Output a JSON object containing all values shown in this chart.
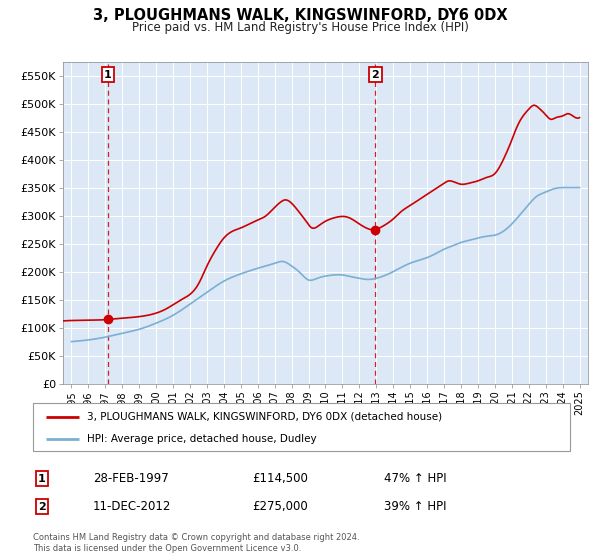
{
  "title": "3, PLOUGHMANS WALK, KINGSWINFORD, DY6 0DX",
  "subtitle": "Price paid vs. HM Land Registry's House Price Index (HPI)",
  "hpi_label": "HPI: Average price, detached house, Dudley",
  "property_label": "3, PLOUGHMANS WALK, KINGSWINFORD, DY6 0DX (detached house)",
  "sale1": {
    "date_label": "28-FEB-1997",
    "price": 114500,
    "pct": "47% ↑ HPI",
    "marker_x": 1997.16,
    "marker_y": 114500
  },
  "sale2": {
    "date_label": "11-DEC-2012",
    "price": 275000,
    "pct": "39% ↑ HPI",
    "marker_x": 2012.95,
    "marker_y": 275000
  },
  "vline1_x": 1997.16,
  "vline2_x": 2012.95,
  "property_color": "#cc0000",
  "hpi_color": "#7bafd4",
  "marker_color": "#cc0000",
  "background_color": "#dce8f5",
  "grid_color": "#ffffff",
  "ylim": [
    0,
    575000
  ],
  "xlim": [
    1994.5,
    2025.5
  ],
  "yticks": [
    0,
    50000,
    100000,
    150000,
    200000,
    250000,
    300000,
    350000,
    400000,
    450000,
    500000,
    550000
  ],
  "ytick_labels": [
    "£0",
    "£50K",
    "£100K",
    "£150K",
    "£200K",
    "£250K",
    "£300K",
    "£350K",
    "£400K",
    "£450K",
    "£500K",
    "£550K"
  ],
  "xticks": [
    1995,
    1996,
    1997,
    1998,
    1999,
    2000,
    2001,
    2002,
    2003,
    2004,
    2005,
    2006,
    2007,
    2008,
    2009,
    2010,
    2011,
    2012,
    2013,
    2014,
    2015,
    2016,
    2017,
    2018,
    2019,
    2020,
    2021,
    2022,
    2023,
    2024,
    2025
  ],
  "footer_line1": "Contains HM Land Registry data © Crown copyright and database right 2024.",
  "footer_line2": "This data is licensed under the Open Government Licence v3.0.",
  "hpi_key_years": [
    1995,
    1996,
    1997,
    1998,
    1999,
    2000,
    2001,
    2002,
    2003,
    2004,
    2005,
    2006,
    2007,
    2007.5,
    2008,
    2008.5,
    2009,
    2009.5,
    2010,
    2010.5,
    2011,
    2011.5,
    2012,
    2012.5,
    2013,
    2013.5,
    2014,
    2014.5,
    2015,
    2015.5,
    2016,
    2016.5,
    2017,
    2017.5,
    2018,
    2018.5,
    2019,
    2019.5,
    2020,
    2020.5,
    2021,
    2021.5,
    2022,
    2022.5,
    2023,
    2023.5,
    2024,
    2024.5,
    2025
  ],
  "hpi_key_prices": [
    75000,
    78000,
    83000,
    90000,
    97000,
    108000,
    122000,
    142000,
    163000,
    183000,
    196000,
    206000,
    215000,
    218000,
    210000,
    198000,
    185000,
    188000,
    192000,
    194000,
    194000,
    191000,
    188000,
    186000,
    188000,
    193000,
    200000,
    208000,
    215000,
    220000,
    225000,
    232000,
    240000,
    246000,
    252000,
    256000,
    260000,
    263000,
    265000,
    272000,
    285000,
    302000,
    320000,
    335000,
    342000,
    348000,
    350000,
    350000,
    350000
  ],
  "prop_key_years": [
    1994.5,
    1995.5,
    1996.5,
    1997.16,
    1997.5,
    1998.5,
    1999.5,
    2000.5,
    2001.5,
    2002.5,
    2003.0,
    2003.5,
    2004.0,
    2004.5,
    2005.0,
    2005.5,
    2006.0,
    2006.5,
    2007.0,
    2007.3,
    2007.6,
    2008.0,
    2008.4,
    2008.8,
    2009.2,
    2009.6,
    2010.0,
    2010.4,
    2010.8,
    2011.2,
    2011.6,
    2012.0,
    2012.4,
    2012.95,
    2013.2,
    2013.6,
    2014.0,
    2014.5,
    2015.0,
    2015.5,
    2016.0,
    2016.5,
    2017.0,
    2017.3,
    2017.6,
    2018.0,
    2018.5,
    2019.0,
    2019.5,
    2020.0,
    2020.5,
    2021.0,
    2021.3,
    2021.6,
    2022.0,
    2022.3,
    2022.6,
    2023.0,
    2023.3,
    2023.6,
    2024.0,
    2024.3,
    2024.6,
    2025.0
  ],
  "prop_key_prices": [
    112000,
    113000,
    113500,
    114500,
    115500,
    118000,
    122000,
    132000,
    150000,
    178000,
    210000,
    238000,
    260000,
    272000,
    278000,
    285000,
    292000,
    300000,
    315000,
    323000,
    328000,
    322000,
    308000,
    292000,
    278000,
    282000,
    290000,
    295000,
    298000,
    298000,
    293000,
    285000,
    278000,
    275000,
    278000,
    285000,
    294000,
    308000,
    318000,
    328000,
    338000,
    348000,
    358000,
    362000,
    360000,
    356000,
    358000,
    362000,
    368000,
    375000,
    400000,
    435000,
    458000,
    475000,
    490000,
    497000,
    492000,
    480000,
    472000,
    475000,
    478000,
    482000,
    478000,
    475000
  ]
}
